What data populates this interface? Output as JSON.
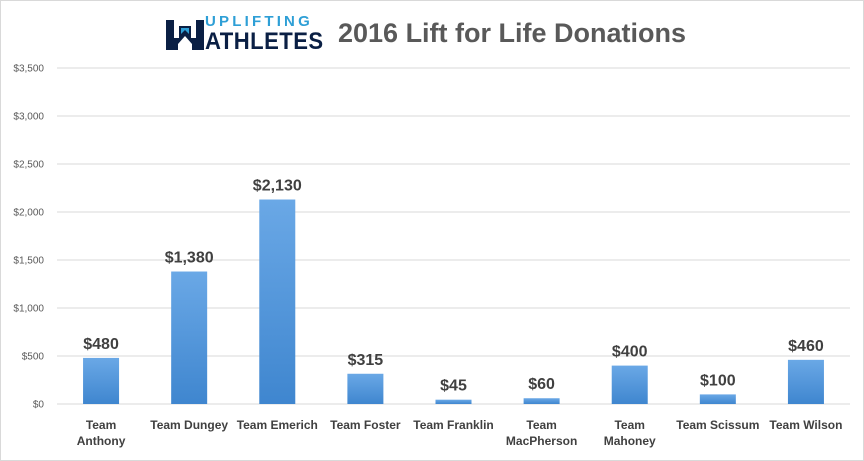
{
  "logo": {
    "top_text": "UPLIFTING",
    "bottom_text": "ATHLETES"
  },
  "chart_data": {
    "type": "bar",
    "title": "2016 Lift for Life Donations",
    "categories": [
      [
        "Team",
        "Anthony"
      ],
      [
        "Team Dungey"
      ],
      [
        "Team Emerich"
      ],
      [
        "Team Foster"
      ],
      [
        "Team Franklin"
      ],
      [
        "Team",
        "MacPherson"
      ],
      [
        "Team",
        "Mahoney"
      ],
      [
        "Team Scissum"
      ],
      [
        "Team Wilson"
      ]
    ],
    "values": [
      480,
      1380,
      2130,
      315,
      45,
      60,
      400,
      100,
      460
    ],
    "data_labels": [
      "$480",
      "$1,380",
      "$2,130",
      "$315",
      "$45",
      "$60",
      "$400",
      "$100",
      "$460"
    ],
    "y_ticks": [
      "$0",
      "$500",
      "$1,000",
      "$1,500",
      "$2,000",
      "$2,500",
      "$3,000",
      "$3,500"
    ],
    "ylim": [
      0,
      3500
    ],
    "grid": true,
    "legend": "none",
    "colors": {
      "bar_top": "#6aa8e6",
      "bar_bottom": "#3f86cf",
      "grid": "#d9d9d9",
      "text": "#404040"
    }
  }
}
